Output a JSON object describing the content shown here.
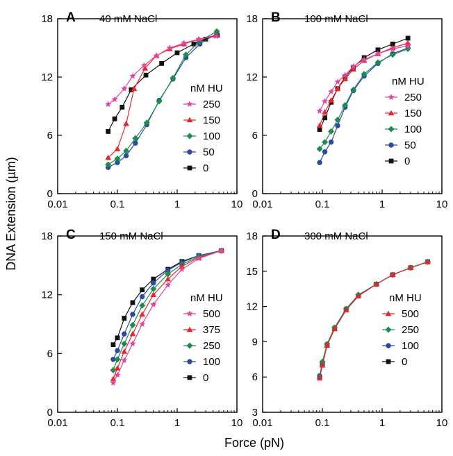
{
  "figure": {
    "ylabel": "DNA Extension (µm)",
    "xlabel": "Force (pN)"
  },
  "chart_data": [
    {
      "type": "line",
      "panel": "A",
      "title": "40 mM NaCl",
      "x_scale": "log",
      "xlim": [
        0.01,
        10
      ],
      "ylim": [
        0,
        18
      ],
      "x_ticks": [
        "0.01",
        "0.1",
        "1",
        "10"
      ],
      "y_ticks": [
        "0",
        "6",
        "12",
        "18"
      ],
      "legend_title": "nM HU",
      "series": [
        {
          "name": "250",
          "color": "#e0449c",
          "marker": "star",
          "x": [
            0.07,
            0.09,
            0.13,
            0.18,
            0.28,
            0.45,
            0.75,
            1.3,
            2.3,
            4.5
          ],
          "y": [
            9.2,
            9.7,
            10.8,
            12.1,
            13.2,
            14.2,
            15.0,
            15.5,
            15.9,
            16.2
          ]
        },
        {
          "name": "150",
          "color": "#e8262b",
          "marker": "triangle",
          "x": [
            0.07,
            0.1,
            0.14,
            0.19,
            0.29,
            0.45,
            0.75,
            1.3,
            2.3,
            4.5
          ],
          "y": [
            3.7,
            4.6,
            7.2,
            10.8,
            12.9,
            14.2,
            14.9,
            15.4,
            15.9,
            16.3
          ]
        },
        {
          "name": "100",
          "color": "#1e8a50",
          "marker": "diamond",
          "x": [
            0.07,
            0.1,
            0.14,
            0.2,
            0.31,
            0.5,
            0.85,
            1.4,
            2.4,
            4.6
          ],
          "y": [
            3.0,
            3.6,
            4.4,
            5.7,
            7.3,
            9.5,
            11.9,
            14.3,
            15.7,
            16.7
          ]
        },
        {
          "name": "50",
          "color": "#2c4a9e",
          "marker": "circle",
          "x": [
            0.07,
            0.1,
            0.14,
            0.2,
            0.31,
            0.5,
            0.85,
            1.4,
            2.4,
            4.6
          ],
          "y": [
            2.7,
            3.2,
            3.9,
            5.2,
            7.1,
            9.6,
            11.8,
            14.0,
            15.4,
            16.5
          ]
        },
        {
          "name": "0",
          "color": "#111111",
          "marker": "square",
          "x": [
            0.07,
            0.09,
            0.12,
            0.17,
            0.3,
            0.55,
            1.0,
            1.9,
            3.0,
            4.7
          ],
          "y": [
            6.4,
            7.7,
            8.9,
            10.7,
            12.2,
            13.4,
            14.5,
            15.4,
            15.9,
            16.3
          ]
        }
      ]
    },
    {
      "type": "line",
      "panel": "B",
      "title": "100 mM NaCl",
      "x_scale": "log",
      "xlim": [
        0.01,
        10
      ],
      "ylim": [
        0,
        18
      ],
      "x_ticks": [
        "0.01",
        "0.1",
        "1",
        "10"
      ],
      "y_ticks": [
        "0",
        "6",
        "12",
        "18"
      ],
      "legend_title": "nM HU",
      "series": [
        {
          "name": "250",
          "color": "#e0449c",
          "marker": "star",
          "x": [
            0.09,
            0.11,
            0.14,
            0.18,
            0.24,
            0.33,
            0.5,
            0.85,
            1.5,
            2.7
          ],
          "y": [
            8.5,
            9.5,
            10.5,
            11.5,
            12.2,
            13.1,
            13.8,
            14.4,
            14.9,
            15.2
          ]
        },
        {
          "name": "150",
          "color": "#e8262b",
          "marker": "triangle",
          "x": [
            0.09,
            0.11,
            0.14,
            0.18,
            0.24,
            0.33,
            0.5,
            0.85,
            1.5,
            2.7
          ],
          "y": [
            7.0,
            8.4,
            9.6,
            10.8,
            11.8,
            12.8,
            13.7,
            14.4,
            15.0,
            15.5
          ]
        },
        {
          "name": "100",
          "color": "#1e8a50",
          "marker": "diamond",
          "x": [
            0.09,
            0.11,
            0.14,
            0.18,
            0.24,
            0.33,
            0.5,
            0.85,
            1.5,
            2.7
          ],
          "y": [
            4.6,
            5.3,
            6.4,
            7.6,
            9.1,
            10.7,
            12.3,
            13.5,
            14.3,
            14.9
          ]
        },
        {
          "name": "50",
          "color": "#2c4a9e",
          "marker": "circle",
          "x": [
            0.09,
            0.11,
            0.14,
            0.18,
            0.24,
            0.33,
            0.5,
            0.85,
            1.5,
            2.7
          ],
          "y": [
            3.2,
            4.3,
            5.3,
            7.0,
            8.9,
            10.6,
            12.1,
            13.4,
            14.4,
            15.0
          ]
        },
        {
          "name": "0",
          "color": "#111111",
          "marker": "square",
          "x": [
            0.09,
            0.11,
            0.14,
            0.18,
            0.24,
            0.33,
            0.5,
            0.85,
            1.5,
            2.7
          ],
          "y": [
            6.6,
            7.8,
            9.4,
            10.8,
            12.0,
            13.0,
            14.0,
            14.8,
            15.4,
            16.0
          ]
        }
      ]
    },
    {
      "type": "line",
      "panel": "C",
      "title": "150 mM NaCl",
      "x_scale": "log",
      "xlim": [
        0.01,
        10
      ],
      "ylim": [
        0,
        18
      ],
      "x_ticks": [
        "0.01",
        "0.1",
        "1",
        "10"
      ],
      "y_ticks": [
        "0",
        "6",
        "12",
        "18"
      ],
      "legend_title": "nM HU",
      "series": [
        {
          "name": "500",
          "color": "#e0449c",
          "marker": "star",
          "x": [
            0.085,
            0.1,
            0.13,
            0.18,
            0.26,
            0.4,
            0.7,
            1.2,
            2.3,
            5.5
          ],
          "y": [
            3.0,
            3.8,
            5.3,
            7.0,
            9.0,
            11.0,
            13.0,
            14.6,
            15.7,
            16.5
          ]
        },
        {
          "name": "375",
          "color": "#e8262b",
          "marker": "triangle",
          "x": [
            0.085,
            0.1,
            0.13,
            0.18,
            0.26,
            0.4,
            0.7,
            1.2,
            2.3,
            5.5
          ],
          "y": [
            3.4,
            4.5,
            6.2,
            8.0,
            10.0,
            12.0,
            13.6,
            14.9,
            15.8,
            16.5
          ]
        },
        {
          "name": "250",
          "color": "#1e8a50",
          "marker": "diamond",
          "x": [
            0.085,
            0.1,
            0.13,
            0.18,
            0.26,
            0.4,
            0.7,
            1.2,
            2.3,
            5.5
          ],
          "y": [
            4.3,
            5.4,
            7.0,
            8.9,
            10.9,
            12.6,
            14.1,
            15.1,
            15.9,
            16.5
          ]
        },
        {
          "name": "100",
          "color": "#2c4a9e",
          "marker": "circle",
          "x": [
            0.085,
            0.1,
            0.13,
            0.18,
            0.26,
            0.4,
            0.7,
            1.2,
            2.3,
            5.5
          ],
          "y": [
            5.4,
            6.3,
            8.0,
            10.0,
            11.8,
            13.2,
            14.5,
            15.3,
            16.0,
            16.5
          ]
        },
        {
          "name": "0",
          "color": "#111111",
          "marker": "square",
          "x": [
            0.085,
            0.1,
            0.13,
            0.18,
            0.26,
            0.4,
            0.7,
            1.2,
            2.3,
            5.5
          ],
          "y": [
            6.9,
            7.6,
            9.6,
            11.2,
            12.5,
            13.6,
            14.6,
            15.4,
            16.0,
            16.5
          ]
        }
      ]
    },
    {
      "type": "line",
      "panel": "D",
      "title": "300 mM NaCl",
      "x_scale": "log",
      "xlim": [
        0.01,
        10
      ],
      "ylim": [
        3,
        18
      ],
      "x_ticks": [
        "0.01",
        "0.1",
        "1",
        "10"
      ],
      "y_ticks": [
        "3",
        "6",
        "9",
        "12",
        "15",
        "18"
      ],
      "legend_title": "nM HU",
      "series": [
        {
          "name": "500",
          "color": "#e8262b",
          "marker": "triangle",
          "x": [
            0.09,
            0.1,
            0.12,
            0.16,
            0.25,
            0.4,
            0.8,
            1.5,
            3.0,
            5.8
          ],
          "y": [
            5.9,
            7.0,
            8.7,
            10.1,
            11.7,
            12.9,
            13.9,
            14.7,
            15.3,
            15.8
          ]
        },
        {
          "name": "250",
          "color": "#1e8a50",
          "marker": "diamond",
          "x": [
            0.09,
            0.1,
            0.12,
            0.16,
            0.25,
            0.4,
            0.8,
            1.5,
            3.0,
            5.8
          ],
          "y": [
            6.0,
            7.3,
            8.8,
            10.2,
            11.8,
            13.0,
            13.9,
            14.7,
            15.3,
            15.8
          ]
        },
        {
          "name": "100",
          "color": "#2c4a9e",
          "marker": "circle",
          "x": [
            0.09,
            0.1,
            0.12,
            0.16,
            0.25,
            0.4,
            0.8,
            1.5,
            3.0,
            5.8
          ],
          "y": [
            6.1,
            7.2,
            8.8,
            10.2,
            11.8,
            12.9,
            13.9,
            14.7,
            15.3,
            15.8
          ]
        },
        {
          "name": "0",
          "color": "#111111",
          "marker": "square",
          "x": [
            0.09,
            0.1,
            0.12,
            0.16,
            0.25,
            0.4,
            0.8,
            1.5,
            3.0,
            5.8
          ],
          "y": [
            6.0,
            7.1,
            8.7,
            10.1,
            11.7,
            12.9,
            13.9,
            14.7,
            15.3,
            15.8
          ]
        }
      ]
    }
  ]
}
